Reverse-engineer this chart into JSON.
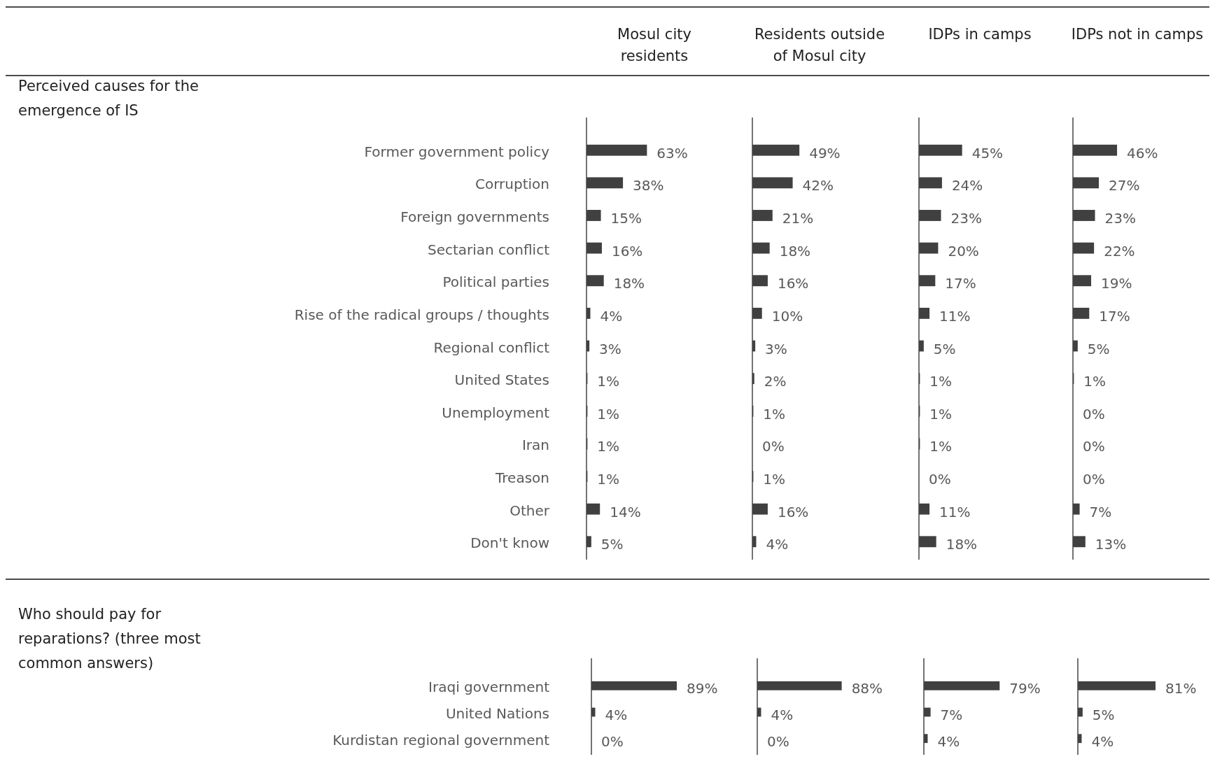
{
  "chart_data": [
    {
      "type": "bar",
      "orientation": "horizontal",
      "title": "Mosul city residents",
      "annotations": [
        "Perceived causes for the emergence of IS"
      ],
      "categories": [
        "Former government policy",
        "Corruption",
        "Foreign governments",
        "Sectarian conflict",
        "Political parties",
        "Rise of the radical groups / thoughts",
        "Regional conflict",
        "United States",
        "Unemployment",
        "Iran",
        "Treason",
        "Other",
        "Don't know"
      ],
      "values": [
        63,
        38,
        15,
        16,
        18,
        4,
        3,
        1,
        1,
        1,
        1,
        14,
        5
      ],
      "value_labels": [
        "63%",
        "38%",
        "15%",
        "16%",
        "18%",
        "4%",
        "3%",
        "1%",
        "1%",
        "1%",
        "1%",
        "14%",
        "5%"
      ],
      "color": "#404040",
      "tick_labels": "y"
    },
    {
      "type": "bar",
      "orientation": "horizontal",
      "title": "Residents outside of Mosul city",
      "values": [
        49,
        42,
        21,
        18,
        16,
        10,
        3,
        2,
        1,
        0,
        1,
        16,
        4
      ],
      "value_labels": [
        "49%",
        "42%",
        "21%",
        "18%",
        "16%",
        "10%",
        "3%",
        "2%",
        "1%",
        "0%",
        "1%",
        "16%",
        "4%"
      ],
      "color": "#404040",
      "tick_labels": false
    },
    {
      "type": "bar",
      "orientation": "horizontal",
      "title": "IDPs in camps",
      "values": [
        45,
        24,
        23,
        20,
        17,
        11,
        5,
        1,
        1,
        1,
        0,
        11,
        18
      ],
      "value_labels": [
        "45%",
        "24%",
        "23%",
        "20%",
        "17%",
        "11%",
        "5%",
        "1%",
        "1%",
        "1%",
        "0%",
        "11%",
        "18%"
      ],
      "color": "#404040",
      "tick_labels": false
    },
    {
      "type": "bar",
      "orientation": "horizontal",
      "title": "IDPs not in camps",
      "values": [
        46,
        27,
        23,
        22,
        19,
        17,
        5,
        1,
        0,
        0,
        0,
        7,
        13
      ],
      "value_labels": [
        "46%",
        "27%",
        "23%",
        "22%",
        "19%",
        "17%",
        "5%",
        "1%",
        "0%",
        "0%",
        "0%",
        "7%",
        "13%"
      ],
      "color": "#404040",
      "tick_labels": false
    },
    {
      "type": "bar",
      "orientation": "horizontal",
      "annotations": [
        "Who should pay for reparations? (three most common answers)"
      ],
      "categories": [
        "Iraqi government",
        "United Nations",
        "Kurdistan regional government"
      ],
      "values": [
        89,
        4,
        0
      ],
      "value_labels": [
        "89%",
        "4%",
        "0%"
      ],
      "color": "#404040",
      "tick_labels": "y"
    },
    {
      "type": "bar",
      "orientation": "horizontal",
      "values": [
        88,
        4,
        0
      ],
      "value_labels": [
        "88%",
        "4%",
        "0%"
      ],
      "color": "#404040",
      "tick_labels": false
    },
    {
      "type": "bar",
      "orientation": "horizontal",
      "values": [
        79,
        7,
        4
      ],
      "value_labels": [
        "79%",
        "7%",
        "4%"
      ],
      "color": "#404040",
      "tick_labels": false
    },
    {
      "type": "bar",
      "orientation": "horizontal",
      "values": [
        81,
        5,
        4
      ],
      "value_labels": [
        "81%",
        "5%",
        "4%"
      ],
      "color": "#404040",
      "tick_labels": false
    }
  ]
}
